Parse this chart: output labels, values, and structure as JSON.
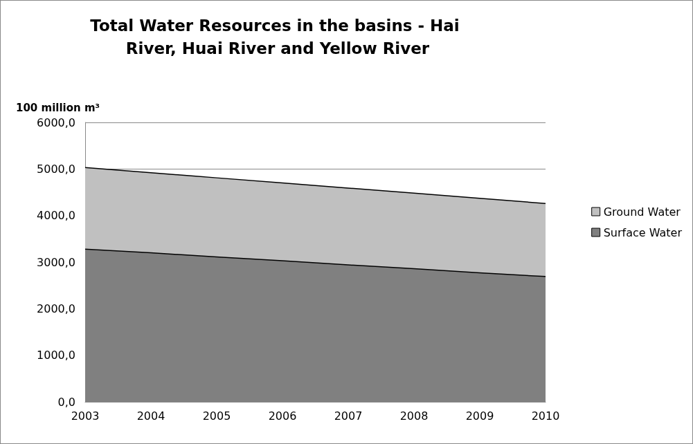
{
  "chart_data": {
    "type": "area",
    "title": "Total Water Resources in the basins - Hai River, Huai River and Yellow River",
    "ylabel": "100 million m³",
    "categories": [
      "2003",
      "2004",
      "2005",
      "2006",
      "2007",
      "2008",
      "2009",
      "2010"
    ],
    "stacked": true,
    "series": [
      {
        "name": "Surface Water",
        "color": "#808080",
        "values": [
          3280,
          3200,
          3110,
          3030,
          2940,
          2860,
          2770,
          2690
        ]
      },
      {
        "name": "Ground Water",
        "color": "#c0c0c0",
        "values": [
          1750,
          1720,
          1700,
          1670,
          1650,
          1620,
          1600,
          1570
        ]
      }
    ],
    "ylim": [
      0,
      6000
    ],
    "yticks": [
      {
        "value": 0,
        "label": "0,0"
      },
      {
        "value": 1000,
        "label": "1000,0"
      },
      {
        "value": 2000,
        "label": "2000,0"
      },
      {
        "value": 3000,
        "label": "3000,0"
      },
      {
        "value": 4000,
        "label": "4000,0"
      },
      {
        "value": 5000,
        "label": "5000,0"
      },
      {
        "value": 6000,
        "label": "6000,0"
      }
    ],
    "grid": "y",
    "legend": "right"
  }
}
